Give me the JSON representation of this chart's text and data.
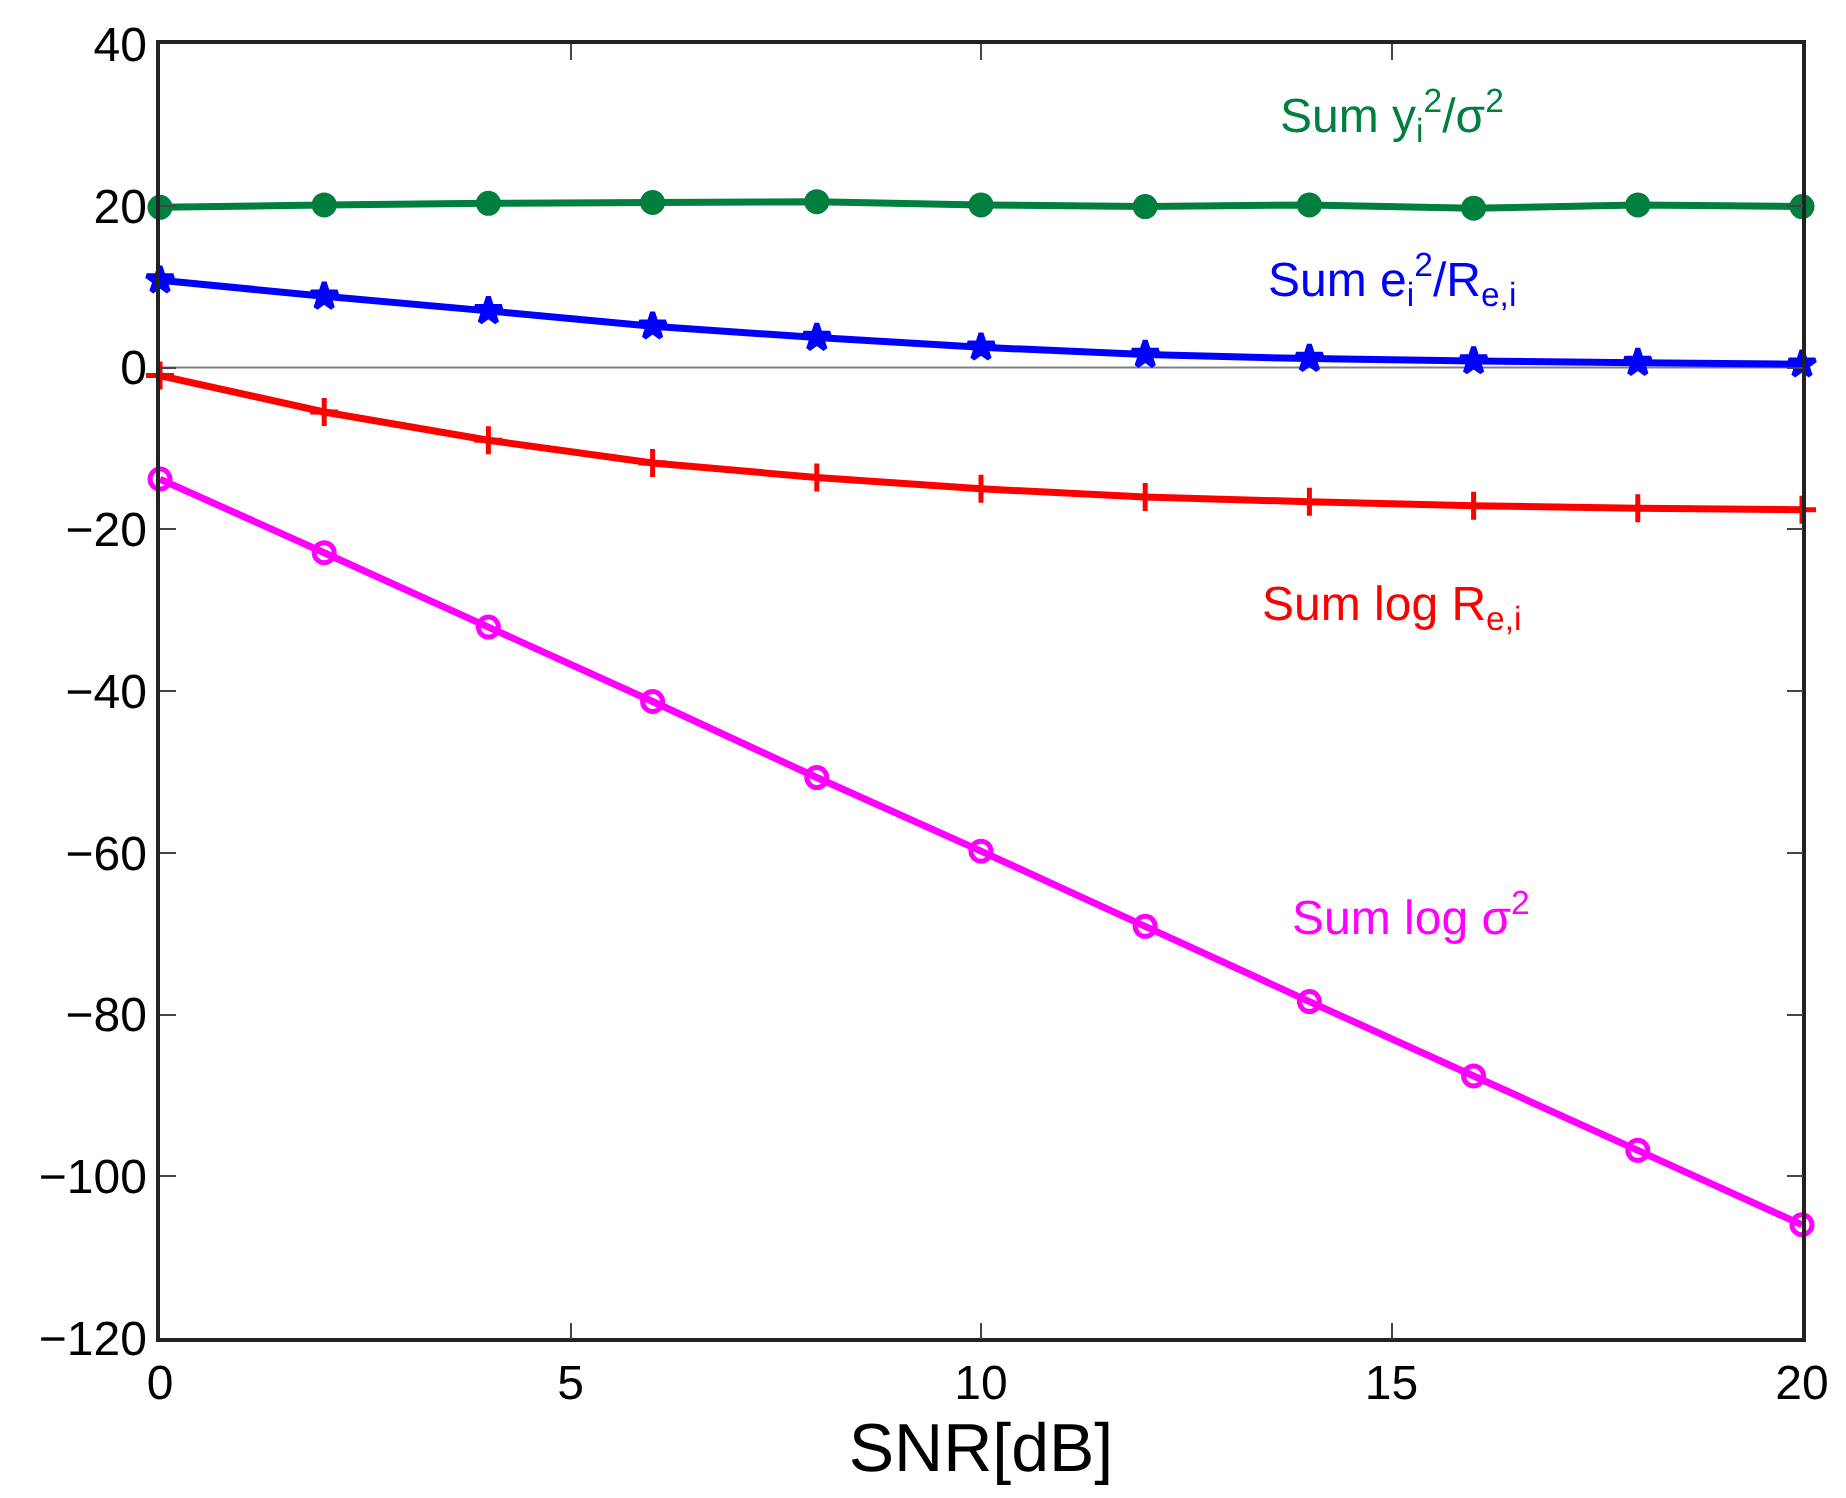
{
  "chart_data": {
    "type": "line",
    "xlabel": "SNR[dB]",
    "x": [
      0,
      2,
      4,
      6,
      8,
      10,
      12,
      14,
      16,
      18,
      20
    ],
    "series": [
      {
        "name": "Sum y$_{i}$$^{2}$/σ$^{2}$",
        "color": "#007f3f",
        "marker": "circle",
        "values": [
          19.8,
          20.1,
          20.3,
          20.4,
          20.5,
          20.1,
          19.9,
          20.1,
          19.7,
          20.1,
          19.9
        ]
      },
      {
        "name": "Sum e$_{i}$$^{2}$/R$_{e,i}$",
        "color": "#0000ff",
        "marker": "star",
        "values": [
          10.8,
          8.8,
          7.0,
          5.1,
          3.7,
          2.5,
          1.6,
          1.1,
          0.8,
          0.6,
          0.4
        ]
      },
      {
        "name": "Sum log R$_{e,i}$",
        "color": "#ff0000",
        "marker": "cross",
        "values": [
          -1.0,
          -5.5,
          -9.0,
          -11.8,
          -13.6,
          -15.0,
          -16.0,
          -16.6,
          -17.1,
          -17.4,
          -17.6
        ]
      },
      {
        "name": "Sum log σ$^{2}$",
        "color": "#ff00ff",
        "marker": "circle",
        "values": [
          -13.8,
          -22.9,
          -32.1,
          -41.3,
          -50.7,
          -59.8,
          -69.1,
          -78.4,
          -87.6,
          -96.8,
          -106.0
        ]
      }
    ],
    "xlim": [
      0,
      20
    ],
    "xticks": [
      0,
      5,
      10,
      15,
      20
    ],
    "ylim": [
      -120,
      40
    ],
    "yticks": [
      -120,
      -100,
      -80,
      -60,
      -40,
      -20,
      0,
      20,
      40
    ],
    "ref_lines": [
      {
        "axis": "y",
        "value": 0,
        "color": "#808080"
      }
    ],
    "grid": false,
    "legend": false,
    "line_style": "solid"
  }
}
